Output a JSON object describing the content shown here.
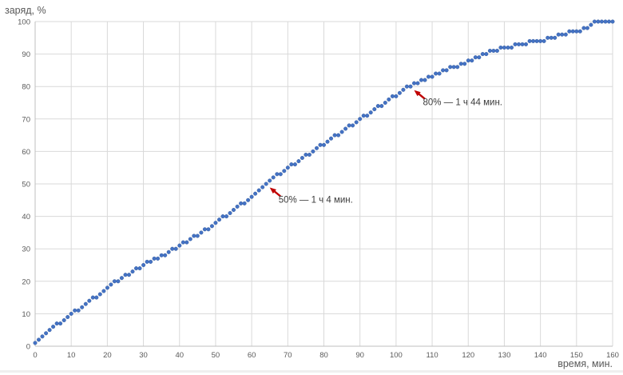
{
  "chart": {
    "y_axis_title": "заряд, %",
    "x_axis_title": "время, мин."
  },
  "colors": {
    "marker": "#4472C4",
    "marker_edge": "#2E5696",
    "grid": "#D9D9D9",
    "axis_line": "#BFBFBF",
    "tick_label": "#595959",
    "axis_title": "#595959",
    "annotation_text": "#3B3B3B",
    "annotation_arrow": "#C00000",
    "background": "#FFFFFF"
  },
  "chart_data": {
    "type": "scatter",
    "title": "",
    "xlabel": "время, мин.",
    "ylabel": "заряд, %",
    "xlim": [
      0,
      160
    ],
    "ylim": [
      0,
      100
    ],
    "grid": true,
    "legend": "none",
    "x_ticks": [
      0,
      10,
      20,
      30,
      40,
      50,
      60,
      70,
      80,
      90,
      100,
      110,
      120,
      130,
      140,
      150,
      160
    ],
    "y_ticks": [
      0,
      10,
      20,
      30,
      40,
      50,
      60,
      70,
      80,
      90,
      100
    ],
    "x": [
      0,
      1,
      2,
      3,
      4,
      5,
      6,
      7,
      8,
      9,
      10,
      11,
      12,
      13,
      14,
      15,
      16,
      17,
      18,
      19,
      20,
      21,
      22,
      23,
      24,
      25,
      26,
      27,
      28,
      29,
      30,
      31,
      32,
      33,
      34,
      35,
      36,
      37,
      38,
      39,
      40,
      41,
      42,
      43,
      44,
      45,
      46,
      47,
      48,
      49,
      50,
      51,
      52,
      53,
      54,
      55,
      56,
      57,
      58,
      59,
      60,
      61,
      62,
      63,
      64,
      65,
      66,
      67,
      68,
      69,
      70,
      71,
      72,
      73,
      74,
      75,
      76,
      77,
      78,
      79,
      80,
      81,
      82,
      83,
      84,
      85,
      86,
      87,
      88,
      89,
      90,
      91,
      92,
      93,
      94,
      95,
      96,
      97,
      98,
      99,
      100,
      101,
      102,
      103,
      104,
      105,
      106,
      107,
      108,
      109,
      110,
      111,
      112,
      113,
      114,
      115,
      116,
      117,
      118,
      119,
      120,
      121,
      122,
      123,
      124,
      125,
      126,
      127,
      128,
      129,
      130,
      131,
      132,
      133,
      134,
      135,
      136,
      137,
      138,
      139,
      140,
      141,
      142,
      143,
      144,
      145,
      146,
      147,
      148,
      149,
      150,
      151,
      152,
      153,
      154,
      155,
      156,
      157,
      158,
      159,
      160
    ],
    "y": [
      1,
      2,
      3,
      4,
      5,
      6,
      7,
      7,
      8,
      9,
      10,
      11,
      11,
      12,
      13,
      14,
      15,
      15,
      16,
      17,
      18,
      19,
      20,
      20,
      21,
      22,
      22,
      23,
      24,
      24,
      25,
      26,
      26,
      27,
      27,
      28,
      28,
      29,
      30,
      30,
      31,
      32,
      32,
      33,
      34,
      34,
      35,
      36,
      36,
      37,
      38,
      39,
      40,
      40,
      41,
      42,
      43,
      44,
      44,
      45,
      46,
      47,
      48,
      49,
      50,
      51,
      52,
      53,
      53,
      54,
      55,
      56,
      56,
      57,
      58,
      59,
      59,
      60,
      61,
      62,
      62,
      63,
      64,
      65,
      65,
      66,
      67,
      68,
      68,
      69,
      70,
      71,
      71,
      72,
      73,
      74,
      74,
      75,
      76,
      77,
      77,
      78,
      79,
      80,
      80,
      81,
      81,
      82,
      82,
      83,
      83,
      84,
      84,
      85,
      85,
      86,
      86,
      86,
      87,
      87,
      88,
      88,
      89,
      89,
      90,
      90,
      91,
      91,
      91,
      92,
      92,
      92,
      92,
      93,
      93,
      93,
      93,
      94,
      94,
      94,
      94,
      94,
      95,
      95,
      95,
      96,
      96,
      96,
      97,
      97,
      97,
      97,
      98,
      98,
      99,
      100,
      100,
      100,
      100,
      100,
      100
    ],
    "annotations": [
      {
        "text": "50% — 1 ч 4 мин.",
        "x": 64,
        "y": 50
      },
      {
        "text": "80% — 1 ч 44 мин.",
        "x": 104,
        "y": 80
      }
    ]
  }
}
